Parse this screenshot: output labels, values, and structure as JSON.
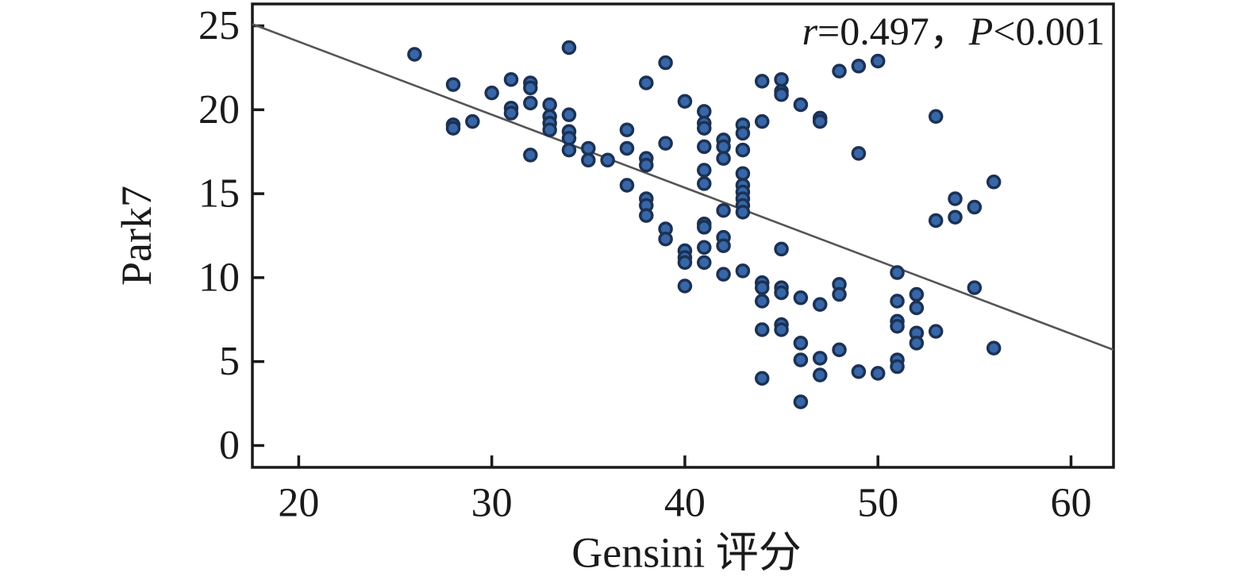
{
  "chart_data": {
    "type": "scatter",
    "title": "",
    "xlabel": "Gensini 评分",
    "ylabel": "Park7",
    "annotation_text": "r=0.497，P<0.001",
    "annotation": {
      "r_symbol": "r",
      "r_value": "=0.497，",
      "p_symbol": "P",
      "p_value": "<0.001"
    },
    "x_ticks": [
      20,
      30,
      40,
      50,
      60
    ],
    "y_ticks": [
      0,
      5,
      10,
      15,
      20,
      25
    ],
    "xlim": [
      17.6,
      62.2
    ],
    "ylim": [
      -1.3,
      26.3
    ],
    "grid": false,
    "legend": "none",
    "trend_line": {
      "x1": 17.6,
      "y1": 25.1,
      "x2": 62.2,
      "y2": 5.7
    },
    "colors": {
      "marker_fill": "#3767a8",
      "marker_stroke": "#1c3154",
      "trend": "#555555",
      "axis": "#1a1a1a",
      "text": "#1a1a1a"
    },
    "points": [
      [
        26,
        23.3
      ],
      [
        28,
        21.5
      ],
      [
        28,
        19.1
      ],
      [
        28,
        18.9
      ],
      [
        29,
        19.3
      ],
      [
        30,
        21.0
      ],
      [
        31,
        21.8
      ],
      [
        31,
        20.1
      ],
      [
        31,
        19.8
      ],
      [
        32,
        21.6
      ],
      [
        32,
        21.3
      ],
      [
        32,
        20.4
      ],
      [
        32,
        17.3
      ],
      [
        33,
        20.3
      ],
      [
        33,
        19.6
      ],
      [
        33,
        19.2
      ],
      [
        33,
        18.8
      ],
      [
        34,
        23.7
      ],
      [
        34,
        19.7
      ],
      [
        34,
        18.7
      ],
      [
        34,
        18.3
      ],
      [
        34,
        17.6
      ],
      [
        35,
        17.7
      ],
      [
        35,
        17.0
      ],
      [
        36,
        17.0
      ],
      [
        37,
        18.8
      ],
      [
        37,
        17.7
      ],
      [
        37,
        15.5
      ],
      [
        38,
        21.6
      ],
      [
        38,
        17.1
      ],
      [
        38,
        16.7
      ],
      [
        38,
        14.7
      ],
      [
        38,
        14.3
      ],
      [
        38,
        13.7
      ],
      [
        39,
        22.8
      ],
      [
        39,
        18.0
      ],
      [
        39,
        12.9
      ],
      [
        39,
        12.3
      ],
      [
        40,
        20.5
      ],
      [
        40,
        11.6
      ],
      [
        40,
        11.2
      ],
      [
        40,
        10.9
      ],
      [
        40,
        9.5
      ],
      [
        41,
        19.9
      ],
      [
        41,
        19.2
      ],
      [
        41,
        18.9
      ],
      [
        41,
        17.8
      ],
      [
        41,
        16.4
      ],
      [
        41,
        15.6
      ],
      [
        41,
        13.2
      ],
      [
        41,
        13.0
      ],
      [
        41,
        11.8
      ],
      [
        41,
        10.9
      ],
      [
        42,
        18.2
      ],
      [
        42,
        17.8
      ],
      [
        42,
        17.1
      ],
      [
        42,
        14.0
      ],
      [
        42,
        12.4
      ],
      [
        42,
        11.9
      ],
      [
        42,
        10.2
      ],
      [
        43,
        19.1
      ],
      [
        43,
        18.6
      ],
      [
        43,
        17.6
      ],
      [
        43,
        16.2
      ],
      [
        43,
        15.5
      ],
      [
        43,
        15.1
      ],
      [
        43,
        14.7
      ],
      [
        43,
        14.3
      ],
      [
        43,
        13.9
      ],
      [
        43,
        10.4
      ],
      [
        44,
        21.7
      ],
      [
        44,
        19.3
      ],
      [
        44,
        9.7
      ],
      [
        44,
        9.4
      ],
      [
        44,
        8.6
      ],
      [
        44,
        6.9
      ],
      [
        44,
        4.0
      ],
      [
        45,
        21.8
      ],
      [
        45,
        21.1
      ],
      [
        45,
        20.9
      ],
      [
        45,
        11.7
      ],
      [
        45,
        9.4
      ],
      [
        45,
        9.1
      ],
      [
        45,
        7.2
      ],
      [
        45,
        6.9
      ],
      [
        46,
        20.3
      ],
      [
        46,
        8.8
      ],
      [
        46,
        6.1
      ],
      [
        46,
        5.1
      ],
      [
        46,
        2.6
      ],
      [
        47,
        19.5
      ],
      [
        47,
        19.3
      ],
      [
        47,
        8.4
      ],
      [
        47,
        5.2
      ],
      [
        47,
        4.2
      ],
      [
        48,
        22.3
      ],
      [
        48,
        9.6
      ],
      [
        48,
        9.0
      ],
      [
        48,
        5.7
      ],
      [
        49,
        22.6
      ],
      [
        49,
        17.4
      ],
      [
        49,
        4.4
      ],
      [
        50,
        22.9
      ],
      [
        50,
        4.3
      ],
      [
        51,
        10.3
      ],
      [
        51,
        8.6
      ],
      [
        51,
        7.4
      ],
      [
        51,
        7.1
      ],
      [
        51,
        5.1
      ],
      [
        51,
        4.7
      ],
      [
        52,
        9.0
      ],
      [
        52,
        8.2
      ],
      [
        52,
        6.7
      ],
      [
        52,
        6.1
      ],
      [
        53,
        19.6
      ],
      [
        53,
        13.4
      ],
      [
        53,
        6.8
      ],
      [
        54,
        14.7
      ],
      [
        54,
        13.6
      ],
      [
        55,
        14.2
      ],
      [
        55,
        9.4
      ],
      [
        56,
        15.7
      ],
      [
        56,
        5.8
      ]
    ]
  }
}
